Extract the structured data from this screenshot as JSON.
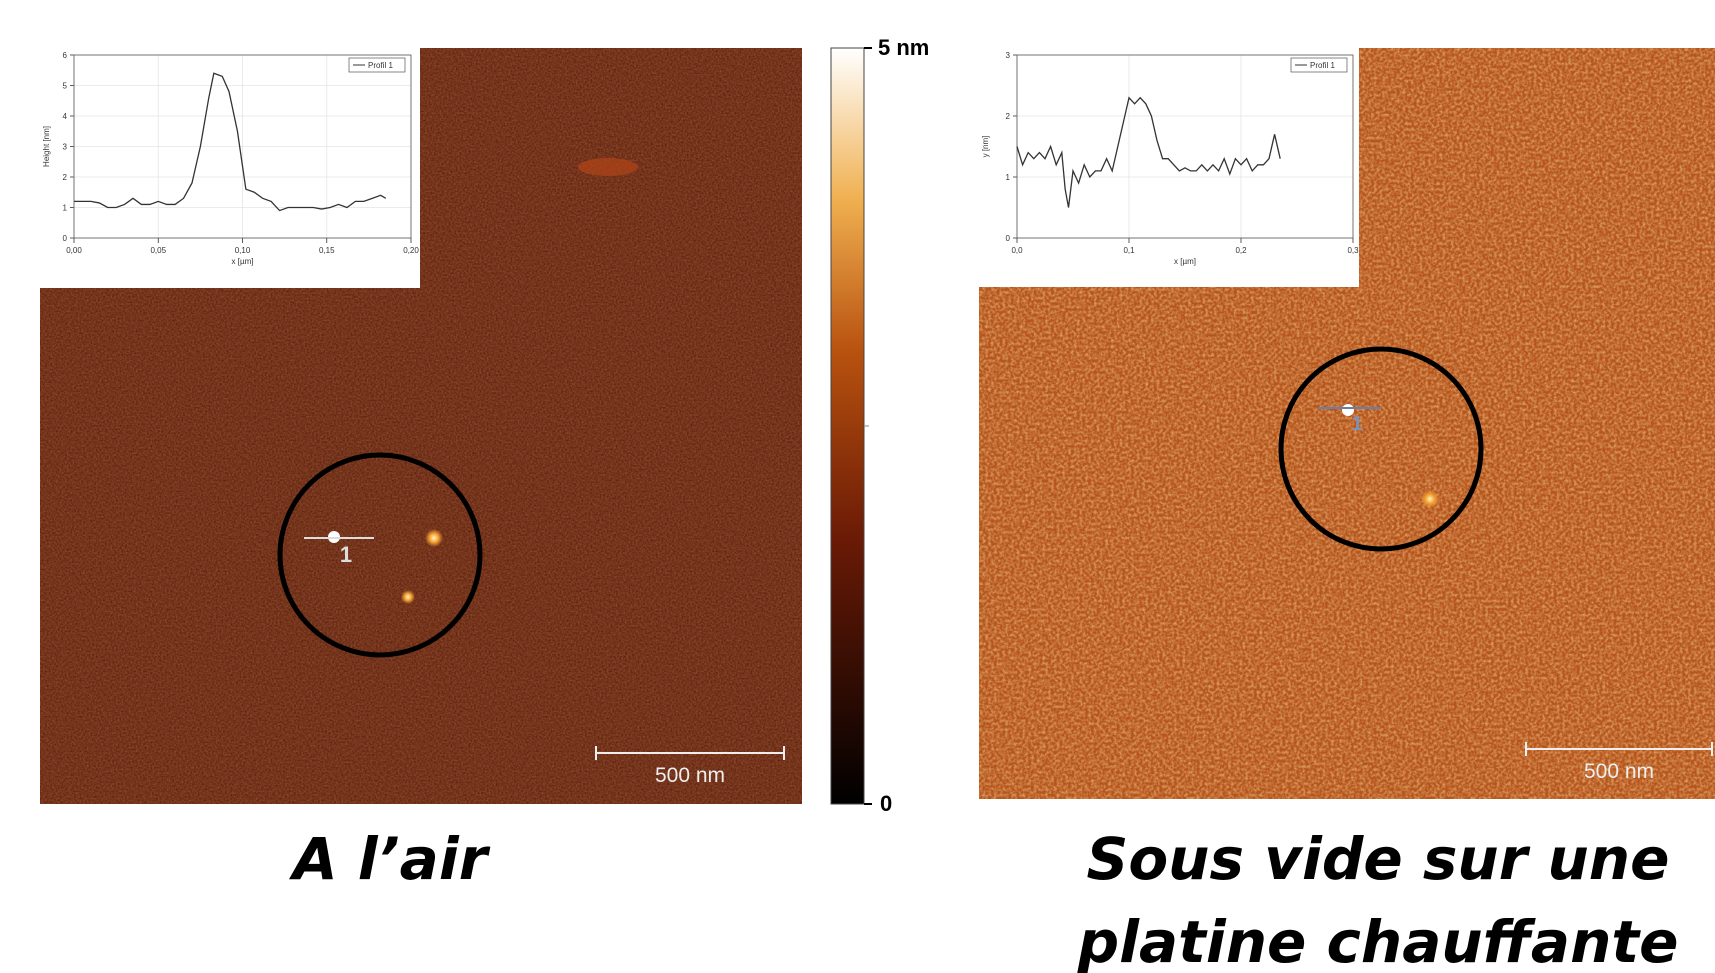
{
  "chart_data": [
    {
      "type": "line",
      "xlabel": "x [µm]",
      "ylabel": "Height [nm]",
      "x": [
        0,
        0.005,
        0.01,
        0.015,
        0.02,
        0.025,
        0.03,
        0.035,
        0.04,
        0.045,
        0.05,
        0.055,
        0.06,
        0.065,
        0.07,
        0.075,
        0.08,
        0.083,
        0.088,
        0.092,
        0.097,
        0.102,
        0.107,
        0.112,
        0.117,
        0.122,
        0.127,
        0.132,
        0.137,
        0.142,
        0.147,
        0.152,
        0.157,
        0.162,
        0.167,
        0.172,
        0.177,
        0.182,
        0.185
      ],
      "series": [
        {
          "name": "Profil 1",
          "color": "#333333",
          "values": [
            1.2,
            1.2,
            1.2,
            1.15,
            1.0,
            1.0,
            1.1,
            1.3,
            1.1,
            1.1,
            1.2,
            1.1,
            1.1,
            1.3,
            1.8,
            3.0,
            4.6,
            5.4,
            5.3,
            4.8,
            3.5,
            1.6,
            1.5,
            1.3,
            1.2,
            0.9,
            1.0,
            1.0,
            1.0,
            1.0,
            0.95,
            1.0,
            1.1,
            1.0,
            1.2,
            1.2,
            1.3,
            1.4,
            1.3
          ]
        }
      ],
      "xlim": [
        0,
        0.2
      ],
      "xticks": [
        {
          "value": 0,
          "label": "0,00"
        },
        {
          "value": 0.05,
          "label": "0,05"
        },
        {
          "value": 0.1,
          "label": "0,10"
        },
        {
          "value": 0.15,
          "label": "0,15"
        },
        {
          "value": 0.2,
          "label": "0,20"
        }
      ],
      "ylim": [
        0,
        6
      ],
      "yticks": [
        0,
        1,
        2,
        3,
        4,
        5,
        6
      ],
      "grid": true,
      "legend": "top-right"
    },
    {
      "type": "line",
      "xlabel": "x [µm]",
      "ylabel": "y [nm]",
      "x": [
        0,
        0.005,
        0.01,
        0.015,
        0.02,
        0.025,
        0.03,
        0.035,
        0.04,
        0.043,
        0.046,
        0.05,
        0.055,
        0.06,
        0.065,
        0.07,
        0.075,
        0.08,
        0.085,
        0.09,
        0.095,
        0.1,
        0.105,
        0.11,
        0.115,
        0.12,
        0.125,
        0.13,
        0.135,
        0.14,
        0.145,
        0.15,
        0.155,
        0.16,
        0.165,
        0.17,
        0.175,
        0.18,
        0.185,
        0.19,
        0.195,
        0.2,
        0.205,
        0.21,
        0.215,
        0.22,
        0.225,
        0.23,
        0.235
      ],
      "series": [
        {
          "name": "Profil 1",
          "color": "#333333",
          "values": [
            1.5,
            1.2,
            1.4,
            1.3,
            1.4,
            1.3,
            1.5,
            1.2,
            1.4,
            0.8,
            0.5,
            1.1,
            0.9,
            1.2,
            1.0,
            1.1,
            1.1,
            1.3,
            1.1,
            1.5,
            1.9,
            2.3,
            2.2,
            2.3,
            2.2,
            2.0,
            1.6,
            1.3,
            1.3,
            1.2,
            1.1,
            1.15,
            1.1,
            1.1,
            1.2,
            1.1,
            1.2,
            1.1,
            1.3,
            1.05,
            1.3,
            1.2,
            1.3,
            1.1,
            1.2,
            1.2,
            1.3,
            1.7,
            1.3
          ]
        }
      ],
      "xlim": [
        0,
        0.3
      ],
      "xticks": [
        {
          "value": 0,
          "label": "0,0"
        },
        {
          "value": 0.1,
          "label": "0,1"
        },
        {
          "value": 0.2,
          "label": "0,2"
        },
        {
          "value": 0.3,
          "label": "0,3"
        }
      ],
      "ylim": [
        0,
        3
      ],
      "yticks": [
        0,
        1,
        2,
        3
      ],
      "grid": true,
      "legend": "top-right"
    }
  ],
  "colorbar": {
    "max_label": "5 nm",
    "min_label": "0"
  },
  "panels": [
    {
      "marker": "1",
      "scale_bar": "500 nm",
      "caption": [
        "A l’air"
      ]
    },
    {
      "marker": "1",
      "scale_bar": "500 nm",
      "caption": [
        "Sous vide sur une",
        "platine chauffante"
      ]
    }
  ]
}
